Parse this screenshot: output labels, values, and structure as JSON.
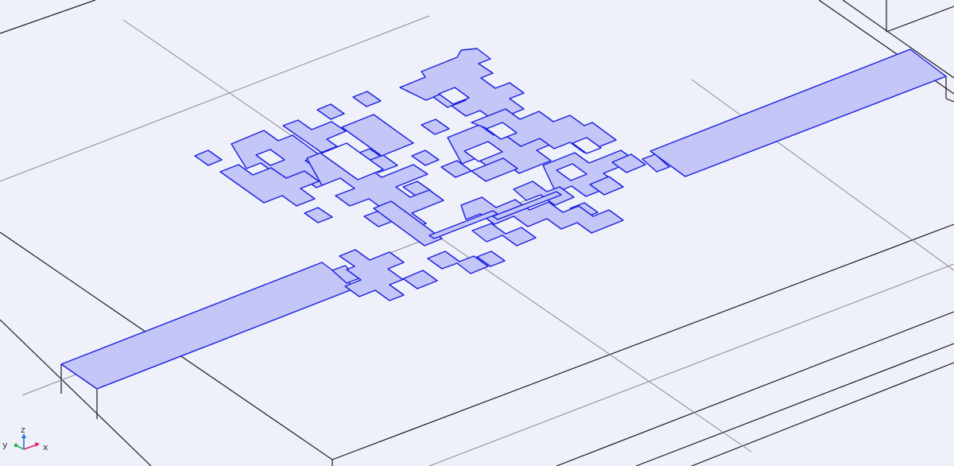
{
  "viewport": {
    "background": "#eef1f9",
    "colors": {
      "pattern_fill": "#c3c6f7",
      "pattern_edge": "#1a1ee0",
      "substrate_edge": "#1c1c1c",
      "grid_line": "#8c8c8c"
    }
  },
  "axes_triad": {
    "x_label": "x",
    "y_label": "y",
    "z_label": "z",
    "x_color": "#e0206b",
    "y_color": "#2bb34a",
    "z_color": "#2e6fd6"
  }
}
